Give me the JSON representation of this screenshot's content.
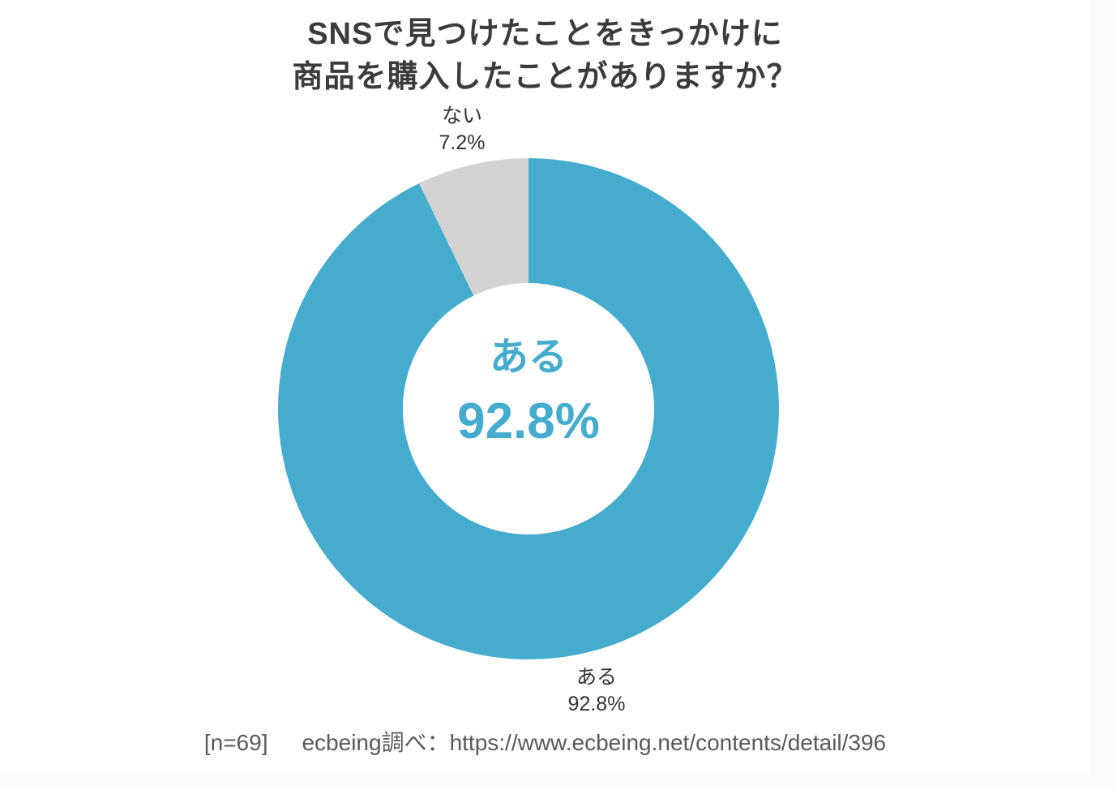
{
  "title": {
    "line1": "SNSで見つけたことをきっかけに",
    "line2": "商品を購入したことがありますか？"
  },
  "chart_data": {
    "type": "pie",
    "subtype": "donut",
    "title": "SNSで見つけたことをきっかけに商品を購入したことがありますか？",
    "categories": [
      "ある",
      "ない"
    ],
    "values": [
      92.8,
      7.2
    ],
    "unit": "%",
    "colors": [
      "#45ACCD",
      "#D3D3D3"
    ],
    "start_angle_deg": 0,
    "direction": "clockwise",
    "inner_radius_ratio": 0.5,
    "legend": "none",
    "callouts": {
      "no": {
        "name": "ない",
        "value": "7.2%"
      },
      "yes": {
        "name": "ある",
        "value": "92.8%"
      },
      "center": {
        "name": "ある",
        "value": "92.8%"
      }
    }
  },
  "footer": {
    "sample": "[n=69]",
    "source": "ecbeing調べ：https://www.ecbeing.net/contents/detail/396"
  },
  "colors": {
    "page_background": "#FAFBFD",
    "canvas_background": "#FFFFFF",
    "accent_blue": "#45ACCD",
    "slice_gray": "#D3D3D3",
    "title_text": "#3B3B3B",
    "label_text": "#333333",
    "footer_text": "#595959"
  }
}
